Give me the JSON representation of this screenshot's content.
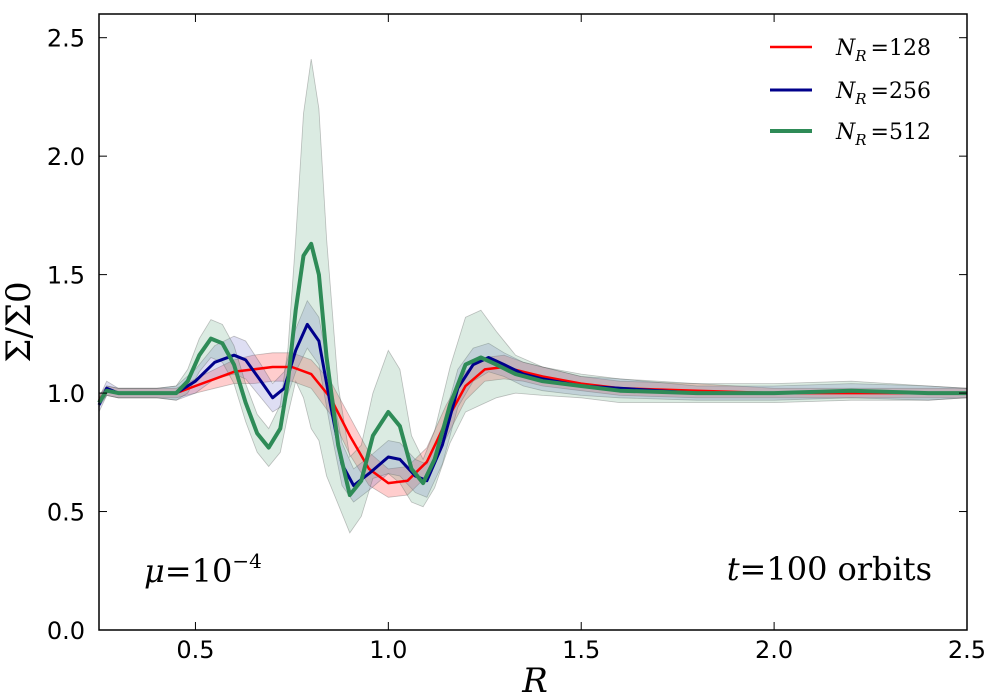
{
  "chart_data": {
    "type": "line",
    "title": "",
    "xlabel": "R",
    "ylabel": "Σ/Σ0",
    "xlim": [
      0.25,
      2.5
    ],
    "ylim": [
      0.0,
      2.6
    ],
    "x_ticks": [
      0.5,
      1.0,
      1.5,
      2.0,
      2.5
    ],
    "x_tick_labels": [
      "0.5",
      "1.0",
      "1.5",
      "2.0",
      "2.5"
    ],
    "y_ticks": [
      0.0,
      0.5,
      1.0,
      1.5,
      2.0,
      2.5
    ],
    "y_tick_labels": [
      "0.0",
      "0.5",
      "1.0",
      "1.5",
      "2.0",
      "2.5"
    ],
    "grid": false,
    "legend_position": "top-right",
    "annotations": {
      "left": {
        "symbol": "μ",
        "eq": "=",
        "base": "10",
        "exponent": "−4"
      },
      "right": {
        "var": "t",
        "eq": "=",
        "value": "100",
        "unit": "orbits"
      }
    },
    "series": [
      {
        "name": "N_R =128",
        "legend_symbol": "N",
        "legend_subscript": "R",
        "legend_value": "=128",
        "color": "#ff0000",
        "band_color": "#ff4d4d",
        "points": [
          [
            0.25,
            0.97
          ],
          [
            0.27,
            1.01
          ],
          [
            0.3,
            1.0
          ],
          [
            0.4,
            1.0
          ],
          [
            0.45,
            1.0
          ],
          [
            0.5,
            1.03
          ],
          [
            0.55,
            1.06
          ],
          [
            0.6,
            1.09
          ],
          [
            0.65,
            1.1
          ],
          [
            0.7,
            1.11
          ],
          [
            0.75,
            1.11
          ],
          [
            0.8,
            1.08
          ],
          [
            0.85,
            0.98
          ],
          [
            0.9,
            0.82
          ],
          [
            0.95,
            0.68
          ],
          [
            1.0,
            0.62
          ],
          [
            1.05,
            0.63
          ],
          [
            1.1,
            0.71
          ],
          [
            1.15,
            0.88
          ],
          [
            1.2,
            1.03
          ],
          [
            1.25,
            1.1
          ],
          [
            1.3,
            1.11
          ],
          [
            1.35,
            1.09
          ],
          [
            1.4,
            1.07
          ],
          [
            1.5,
            1.04
          ],
          [
            1.6,
            1.02
          ],
          [
            1.8,
            1.01
          ],
          [
            2.0,
            1.0
          ],
          [
            2.2,
            1.0
          ],
          [
            2.4,
            1.0
          ],
          [
            2.5,
            1.0
          ]
        ],
        "band_half_width": [
          0.02,
          0.02,
          0.02,
          0.02,
          0.02,
          0.03,
          0.04,
          0.05,
          0.06,
          0.06,
          0.06,
          0.06,
          0.07,
          0.08,
          0.07,
          0.06,
          0.06,
          0.06,
          0.07,
          0.06,
          0.05,
          0.05,
          0.04,
          0.04,
          0.03,
          0.03,
          0.03,
          0.02,
          0.02,
          0.02,
          0.02
        ]
      },
      {
        "name": "N_R =256",
        "legend_symbol": "N",
        "legend_subscript": "R",
        "legend_value": "=256",
        "color": "#00008b",
        "band_color": "#6a6ac8",
        "points": [
          [
            0.25,
            0.95
          ],
          [
            0.27,
            1.02
          ],
          [
            0.3,
            1.0
          ],
          [
            0.4,
            1.0
          ],
          [
            0.45,
            1.0
          ],
          [
            0.5,
            1.05
          ],
          [
            0.55,
            1.13
          ],
          [
            0.6,
            1.16
          ],
          [
            0.63,
            1.14
          ],
          [
            0.67,
            1.05
          ],
          [
            0.7,
            0.98
          ],
          [
            0.73,
            1.02
          ],
          [
            0.76,
            1.18
          ],
          [
            0.79,
            1.29
          ],
          [
            0.82,
            1.22
          ],
          [
            0.85,
            0.95
          ],
          [
            0.88,
            0.7
          ],
          [
            0.91,
            0.61
          ],
          [
            0.95,
            0.66
          ],
          [
            1.0,
            0.73
          ],
          [
            1.03,
            0.72
          ],
          [
            1.07,
            0.65
          ],
          [
            1.1,
            0.63
          ],
          [
            1.14,
            0.78
          ],
          [
            1.18,
            1.02
          ],
          [
            1.22,
            1.12
          ],
          [
            1.26,
            1.15
          ],
          [
            1.3,
            1.12
          ],
          [
            1.35,
            1.08
          ],
          [
            1.4,
            1.06
          ],
          [
            1.5,
            1.03
          ],
          [
            1.6,
            1.02
          ],
          [
            1.8,
            1.0
          ],
          [
            2.0,
            1.0
          ],
          [
            2.2,
            1.01
          ],
          [
            2.4,
            1.0
          ],
          [
            2.5,
            1.0
          ]
        ],
        "band_half_width": [
          0.03,
          0.03,
          0.02,
          0.02,
          0.03,
          0.05,
          0.07,
          0.08,
          0.08,
          0.07,
          0.06,
          0.07,
          0.09,
          0.1,
          0.1,
          0.1,
          0.09,
          0.07,
          0.07,
          0.07,
          0.07,
          0.07,
          0.07,
          0.08,
          0.08,
          0.07,
          0.06,
          0.05,
          0.05,
          0.05,
          0.04,
          0.04,
          0.03,
          0.03,
          0.03,
          0.03,
          0.02
        ]
      },
      {
        "name": "N_R =512",
        "legend_symbol": "N",
        "legend_subscript": "R",
        "legend_value": "=512",
        "color": "#2e8b57",
        "band_color": "#5aa679",
        "points": [
          [
            0.25,
            0.96
          ],
          [
            0.27,
            1.01
          ],
          [
            0.3,
            1.0
          ],
          [
            0.4,
            1.0
          ],
          [
            0.45,
            1.0
          ],
          [
            0.48,
            1.05
          ],
          [
            0.51,
            1.16
          ],
          [
            0.54,
            1.23
          ],
          [
            0.57,
            1.21
          ],
          [
            0.6,
            1.12
          ],
          [
            0.63,
            0.96
          ],
          [
            0.66,
            0.83
          ],
          [
            0.69,
            0.77
          ],
          [
            0.72,
            0.85
          ],
          [
            0.74,
            1.05
          ],
          [
            0.76,
            1.35
          ],
          [
            0.78,
            1.58
          ],
          [
            0.8,
            1.63
          ],
          [
            0.82,
            1.5
          ],
          [
            0.84,
            1.15
          ],
          [
            0.87,
            0.78
          ],
          [
            0.9,
            0.57
          ],
          [
            0.93,
            0.63
          ],
          [
            0.96,
            0.82
          ],
          [
            1.0,
            0.92
          ],
          [
            1.03,
            0.86
          ],
          [
            1.06,
            0.68
          ],
          [
            1.09,
            0.62
          ],
          [
            1.12,
            0.72
          ],
          [
            1.16,
            0.95
          ],
          [
            1.2,
            1.12
          ],
          [
            1.24,
            1.15
          ],
          [
            1.28,
            1.12
          ],
          [
            1.33,
            1.08
          ],
          [
            1.4,
            1.05
          ],
          [
            1.5,
            1.03
          ],
          [
            1.6,
            1.01
          ],
          [
            1.8,
            1.0
          ],
          [
            2.0,
            1.0
          ],
          [
            2.2,
            1.01
          ],
          [
            2.4,
            1.0
          ],
          [
            2.5,
            1.0
          ]
        ],
        "band_half_width": [
          0.02,
          0.02,
          0.02,
          0.02,
          0.03,
          0.05,
          0.07,
          0.08,
          0.08,
          0.08,
          0.08,
          0.08,
          0.08,
          0.1,
          0.14,
          0.3,
          0.6,
          0.78,
          0.7,
          0.5,
          0.25,
          0.16,
          0.15,
          0.18,
          0.26,
          0.24,
          0.14,
          0.1,
          0.12,
          0.16,
          0.2,
          0.2,
          0.14,
          0.08,
          0.06,
          0.05,
          0.05,
          0.04,
          0.04,
          0.04,
          0.03,
          0.02
        ]
      }
    ]
  }
}
